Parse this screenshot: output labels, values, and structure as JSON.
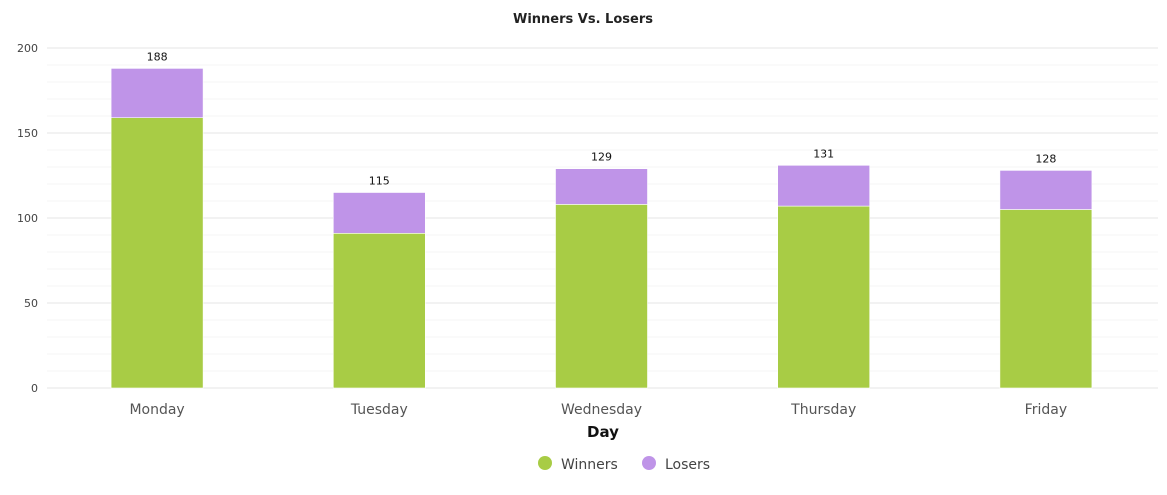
{
  "chart_data": {
    "type": "bar",
    "stacked": true,
    "title": "Winners Vs. Losers",
    "xlabel": "Day",
    "ylabel": "",
    "categories": [
      "Monday",
      "Tuesday",
      "Wednesday",
      "Thursday",
      "Friday"
    ],
    "series": [
      {
        "name": "Winners",
        "values": [
          159,
          91,
          108,
          107,
          105
        ],
        "color": "#a8cc45"
      },
      {
        "name": "Losers",
        "values": [
          29,
          24,
          21,
          24,
          23
        ],
        "color": "#bf94e8"
      }
    ],
    "totals": [
      188,
      115,
      129,
      131,
      128
    ],
    "ylim": [
      0,
      200
    ],
    "yticks": [
      0,
      50,
      100,
      150,
      200
    ],
    "grid": true,
    "legend_position": "bottom"
  }
}
